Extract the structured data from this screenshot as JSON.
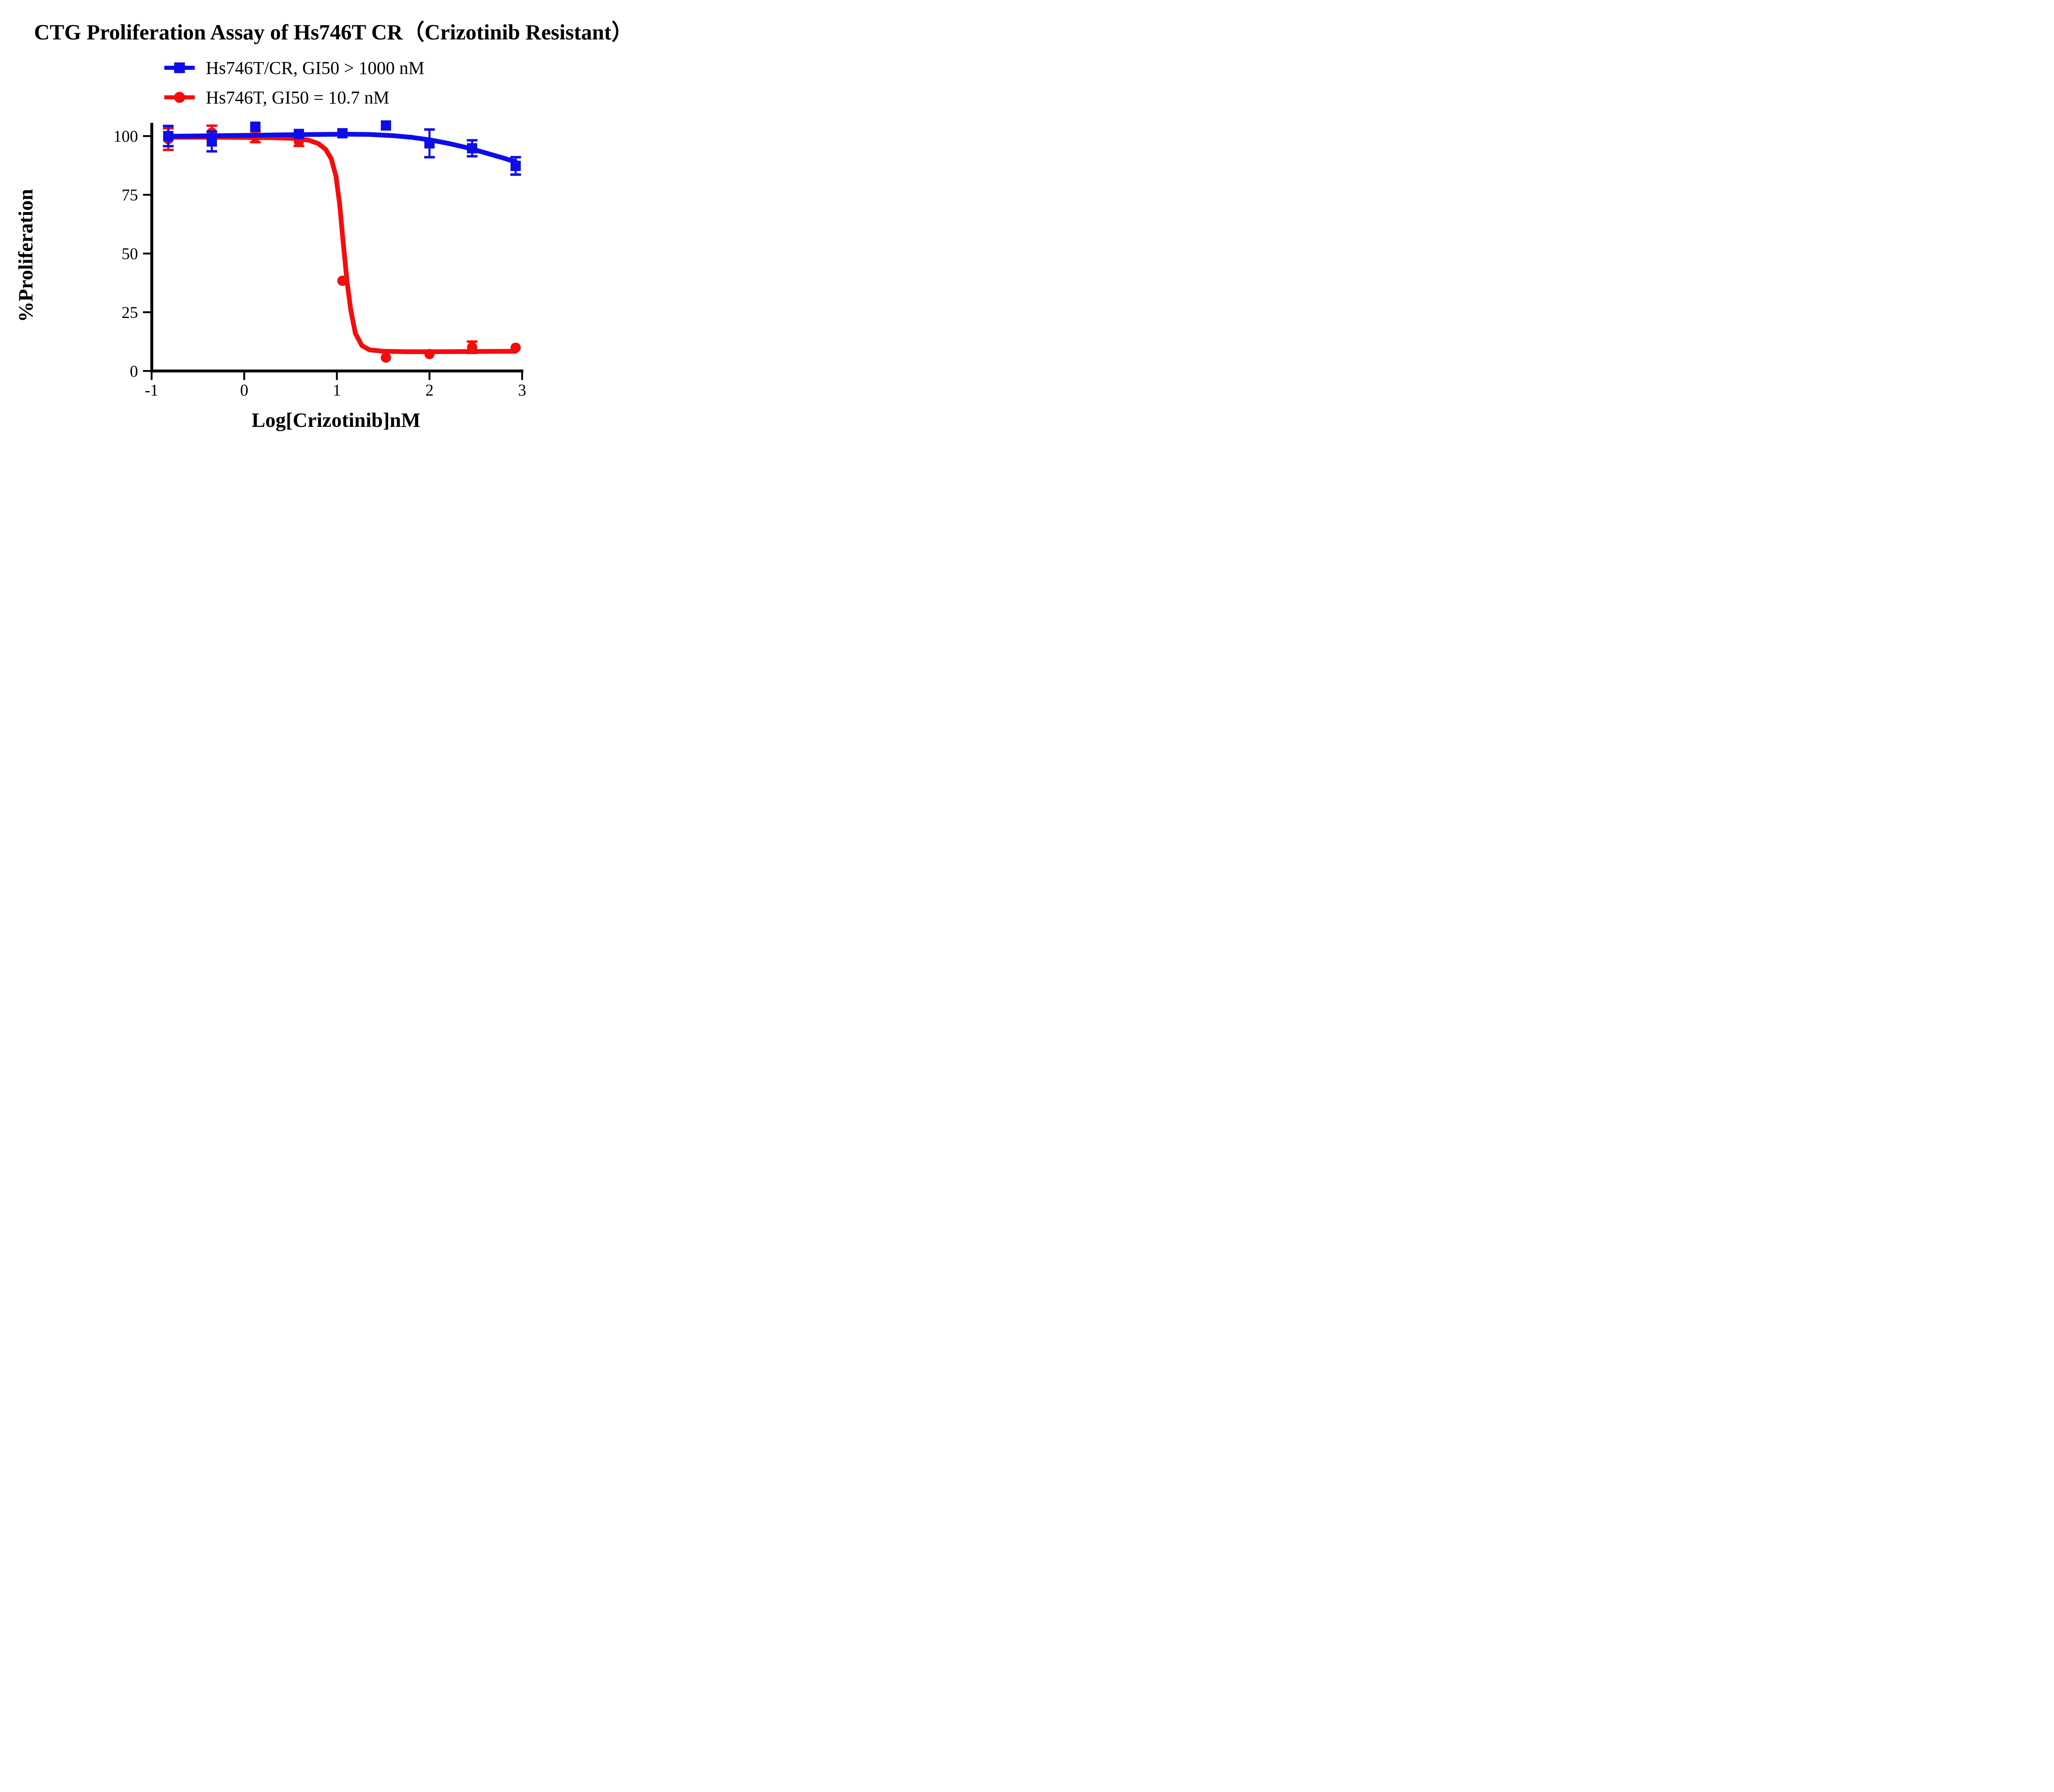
{
  "chart_data": {
    "type": "line",
    "title": "CTG Proliferation Assay of Hs746T CR（Crizotinib Resistant）",
    "xlabel": "Log[Crizotinib]nM",
    "ylabel": "%Proliferation",
    "x_ticks": [
      -1,
      0,
      1,
      2,
      3
    ],
    "y_ticks": [
      0,
      25,
      50,
      75,
      100
    ],
    "xlim": [
      -1,
      3.25
    ],
    "ylim": [
      0,
      107
    ],
    "grid": false,
    "legend_position": "top-left-below-title",
    "axis_color": "#000000",
    "background_color": "#ffffff",
    "series": [
      {
        "name": "Hs746T/CR, GI50 > 1000 nM",
        "color": "#0d0deb",
        "marker": "square",
        "x": [
          -0.82,
          -0.35,
          0.12,
          0.59,
          1.06,
          1.53,
          2.0,
          2.46,
          2.93
        ],
        "values": [
          100.0,
          97.7,
          104.0,
          100.9,
          101.2,
          104.5,
          96.9,
          94.8,
          87.3
        ],
        "sd": [
          4.3,
          4.2,
          0,
          0,
          0,
          0,
          5.9,
          3.4,
          3.7
        ],
        "fit_curve": [
          [
            -0.82,
            99.9
          ],
          [
            -0.4,
            100.1
          ],
          [
            0,
            100.3
          ],
          [
            0.4,
            100.5
          ],
          [
            0.8,
            100.7
          ],
          [
            1.1,
            100.8
          ],
          [
            1.35,
            100.7
          ],
          [
            1.6,
            100.2
          ],
          [
            1.8,
            99.5
          ],
          [
            2.0,
            98.4
          ],
          [
            2.2,
            96.9
          ],
          [
            2.4,
            95.1
          ],
          [
            2.6,
            92.9
          ],
          [
            2.8,
            90.6
          ],
          [
            2.93,
            89.0
          ]
        ]
      },
      {
        "name": "Hs746T, GI50 = 10.7 nM",
        "color": "#f50c0c",
        "marker": "circle",
        "x": [
          -0.82,
          -0.35,
          0.12,
          0.59,
          1.06,
          1.53,
          2.0,
          2.46,
          2.93
        ],
        "values": [
          98.7,
          101.5,
          99.7,
          97.8,
          38.4,
          5.7,
          7.2,
          10.1,
          9.9
        ],
        "sd": [
          4.6,
          2.9,
          2.3,
          2.0,
          0,
          0,
          0,
          2.4,
          0
        ],
        "fit_curve": [
          [
            -0.82,
            99.5
          ],
          [
            -0.4,
            99.5
          ],
          [
            0,
            99.4
          ],
          [
            0.3,
            99.3
          ],
          [
            0.55,
            99.0
          ],
          [
            0.7,
            98.2
          ],
          [
            0.8,
            96.8
          ],
          [
            0.88,
            94.3
          ],
          [
            0.94,
            90.3
          ],
          [
            0.99,
            83
          ],
          [
            1.03,
            71
          ],
          [
            1.07,
            54
          ],
          [
            1.11,
            38
          ],
          [
            1.15,
            26
          ],
          [
            1.2,
            16
          ],
          [
            1.27,
            10.8
          ],
          [
            1.35,
            9.0
          ],
          [
            1.5,
            8.4
          ],
          [
            1.75,
            8.2
          ],
          [
            2.1,
            8.2
          ],
          [
            2.5,
            8.3
          ],
          [
            2.93,
            8.4
          ]
        ]
      }
    ]
  }
}
